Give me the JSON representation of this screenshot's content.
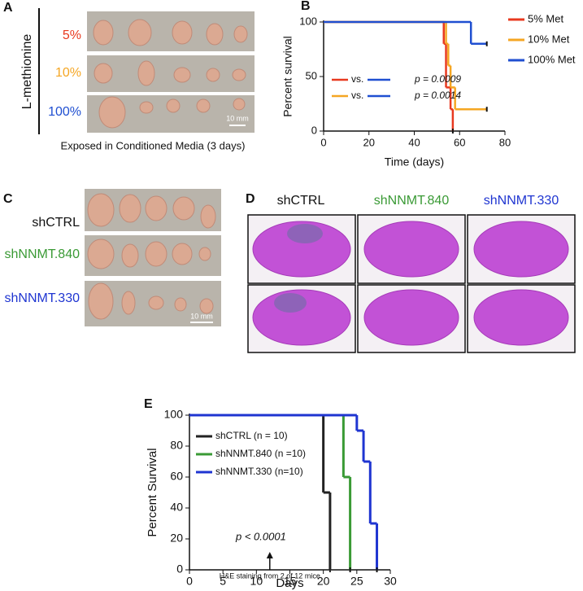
{
  "panels": {
    "A": {
      "letter": "A",
      "axis_label": "L-methionine",
      "rows": [
        "5%",
        "10%",
        "100%"
      ],
      "scale": "10 mm",
      "caption": "Exposed in Conditioned Media (3 days)"
    },
    "C": {
      "letter": "C",
      "rows": [
        "shCTRL",
        "shNNMT.840",
        "shNNMT.330"
      ],
      "scale": "10 mm"
    },
    "D": {
      "letter": "D",
      "columns": [
        "shCTRL",
        "shNNMT.840",
        "shNNMT.330"
      ]
    }
  },
  "chart_data": [
    {
      "type": "step",
      "label": "B",
      "ylabel": "Percent survival",
      "xlabel": "Time (days)",
      "xlim": [
        0,
        80
      ],
      "xticks": [
        0,
        20,
        40,
        60,
        80
      ],
      "ylim": [
        0,
        100
      ],
      "yticks": [
        0,
        50,
        100
      ],
      "legend": "outside-right",
      "series": [
        {
          "name": "5% Met",
          "color": "#e8391f",
          "x": [
            0,
            53,
            54,
            56,
            57
          ],
          "values": [
            100,
            80,
            40,
            20,
            0
          ]
        },
        {
          "name": "10% Met",
          "color": "#f5a623",
          "x": [
            0,
            54,
            55,
            56,
            58,
            72
          ],
          "values": [
            100,
            80,
            60,
            40,
            20,
            20
          ]
        },
        {
          "name": "100% Met",
          "color": "#1f4fd1",
          "x": [
            0,
            65,
            72
          ],
          "values": [
            100,
            80,
            80
          ]
        }
      ],
      "annotations": [
        "vs.",
        "p = 0.0009",
        "vs.",
        "p = 0.0014"
      ]
    },
    {
      "type": "step",
      "label": "E",
      "ylabel": "Percent Survival",
      "xlabel": "Days",
      "xlim": [
        0,
        30
      ],
      "xticks": [
        0,
        5,
        10,
        15,
        20,
        25,
        30
      ],
      "ylim": [
        0,
        100
      ],
      "yticks": [
        0,
        20,
        40,
        60,
        80,
        100
      ],
      "legend": "upper-left",
      "series": [
        {
          "name": "shCTRL (n = 10)",
          "color": "#222222",
          "x": [
            0,
            20,
            21
          ],
          "values": [
            100,
            50,
            0
          ]
        },
        {
          "name": "shNNMT.840 (n =10)",
          "color": "#3a9a35",
          "x": [
            0,
            23,
            24
          ],
          "values": [
            100,
            60,
            0
          ]
        },
        {
          "name": "shNNMT.330 (n=10)",
          "color": "#1f35d1",
          "x": [
            0,
            25,
            26,
            27,
            28
          ],
          "values": [
            100,
            90,
            70,
            30,
            0
          ]
        }
      ],
      "annotations": [
        "p < 0.0001",
        "H&E staining from 2 of 12 mice"
      ],
      "arrow_x": 12
    }
  ]
}
